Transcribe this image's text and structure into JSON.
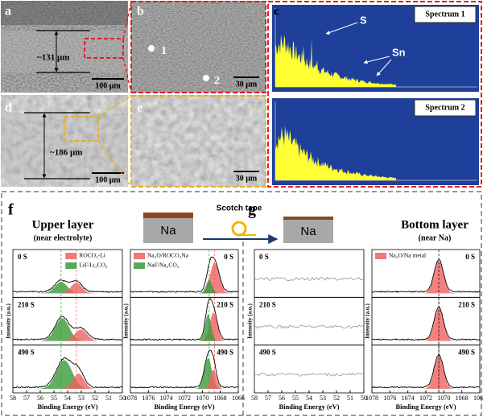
{
  "panel_a": {
    "label": "a",
    "thickness": "~131 μm",
    "scale": "100 μm"
  },
  "panel_b": {
    "label": "b",
    "points": [
      "1",
      "2"
    ],
    "scale": "30 μm"
  },
  "panel_c": {
    "label": "c",
    "spectrum_1": "Spectrum 1",
    "spectrum_2": "Spectrum 2",
    "element_s": "S",
    "element_sn": "Sn"
  },
  "panel_d": {
    "label": "d",
    "thickness": "~186 μm",
    "scale": "100 μm"
  },
  "panel_e": {
    "label": "e",
    "scale": "30 μm"
  },
  "panel_f": {
    "label": "f",
    "title": "Upper layer",
    "subtitle": "(near electrolyte)"
  },
  "panel_g": {
    "label": "g",
    "title": "Bottom layer",
    "subtitle": "(near Na)"
  },
  "schematic": {
    "layer_1": "Na",
    "tape": "Scotch tape",
    "layer_2": "Na"
  },
  "plots": [
    {
      "legend": [
        "ROCO₂-Li",
        "LiF/Li₂CO₃"
      ],
      "times": [
        "0 S",
        "210 S",
        "490 S"
      ],
      "xticks": [
        58,
        57,
        56,
        55,
        54,
        53,
        52,
        51,
        50
      ],
      "xlabel": "Binding Energy (eV)",
      "ylabel": "Intensity (a.u.)"
    },
    {
      "legend": [
        "Na₂O/ROCO₂Na",
        "NaF/Na₂CO₃"
      ],
      "times": [
        "0 S",
        "210 S",
        "490 S"
      ],
      "xticks": [
        1078,
        1076,
        1074,
        1072,
        1070,
        1068,
        1066
      ],
      "xlabel": "Binding Energy (eV)",
      "ylabel": "Intensity (a.u.)"
    },
    {
      "legend": [],
      "times": [
        "0 S",
        "210 S",
        "490 S"
      ],
      "xticks": [
        58,
        57,
        56,
        55,
        54,
        53,
        52,
        51,
        50
      ],
      "xlabel": "Binding Energy (eV)",
      "ylabel": "Intensity (a.u.)"
    },
    {
      "legend": [
        "Na₂O/Na metal"
      ],
      "times": [
        "0 S",
        "210 S",
        "490 S"
      ],
      "xticks": [
        1078,
        1076,
        1074,
        1072,
        1070,
        1068,
        1066
      ],
      "xlabel": "Binding Energy (eV)",
      "ylabel": "Intensity (a.u.)"
    }
  ]
}
